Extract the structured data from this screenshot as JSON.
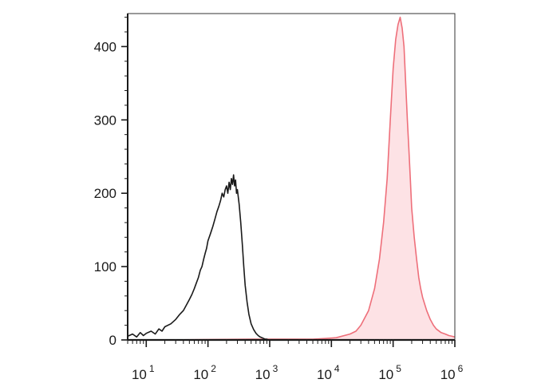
{
  "chart_data": {
    "type": "area",
    "title": "",
    "xlabel": "",
    "ylabel": "",
    "x_scale": "log",
    "xlim": [
      5,
      1000000
    ],
    "ylim": [
      0,
      445
    ],
    "grid": false,
    "legend": "none",
    "y_ticks": [
      {
        "value": 0,
        "label": "0"
      },
      {
        "value": 100,
        "label": "100"
      },
      {
        "value": 200,
        "label": "200"
      },
      {
        "value": 300,
        "label": "300"
      },
      {
        "value": 400,
        "label": "400"
      }
    ],
    "x_ticks": [
      {
        "value": 10,
        "base": "10",
        "exp": "1"
      },
      {
        "value": 100,
        "base": "10",
        "exp": "2"
      },
      {
        "value": 1000,
        "base": "10",
        "exp": "3"
      },
      {
        "value": 10000,
        "base": "10",
        "exp": "4"
      },
      {
        "value": 100000,
        "base": "10",
        "exp": "5"
      },
      {
        "value": 1000000,
        "base": "10",
        "exp": "6"
      }
    ],
    "series": [
      {
        "color": "#1a1a1a",
        "fill": "none",
        "x": [
          5,
          6,
          7,
          8,
          9,
          10,
          12,
          14,
          16,
          18,
          20,
          25,
          30,
          35,
          40,
          45,
          50,
          55,
          60,
          65,
          70,
          75,
          80,
          85,
          90,
          95,
          100,
          110,
          120,
          130,
          140,
          150,
          160,
          170,
          180,
          190,
          200,
          210,
          220,
          230,
          240,
          250,
          260,
          270,
          280,
          290,
          300,
          320,
          340,
          360,
          380,
          400,
          430,
          460,
          500,
          550,
          600,
          650,
          700,
          750,
          800,
          850,
          900,
          950,
          1000
        ],
        "y": [
          5,
          8,
          4,
          10,
          6,
          9,
          12,
          8,
          15,
          12,
          18,
          22,
          28,
          35,
          40,
          48,
          55,
          62,
          70,
          78,
          85,
          95,
          100,
          110,
          118,
          125,
          135,
          145,
          155,
          165,
          175,
          182,
          190,
          200,
          195,
          205,
          210,
          200,
          215,
          205,
          220,
          212,
          225,
          210,
          218,
          200,
          205,
          185,
          160,
          130,
          100,
          75,
          52,
          35,
          22,
          14,
          9,
          6,
          4,
          3,
          2,
          1,
          1,
          0,
          0
        ]
      },
      {
        "color": "#ee6f7a",
        "fill": "#fde2e5",
        "x": [
          20,
          500,
          2000,
          5000,
          8000,
          12000,
          20000,
          25000,
          30000,
          40000,
          50000,
          60000,
          70000,
          80000,
          90000,
          100000,
          110000,
          120000,
          130000,
          140000,
          150000,
          160000,
          170000,
          180000,
          190000,
          200000,
          220000,
          240000,
          260000,
          280000,
          300000,
          350000,
          400000,
          450000,
          500000,
          600000,
          700000,
          800000,
          900000,
          1000000
        ],
        "y": [
          0,
          1,
          1,
          1,
          2,
          3,
          8,
          12,
          20,
          40,
          70,
          110,
          160,
          220,
          300,
          370,
          410,
          430,
          440,
          425,
          400,
          350,
          300,
          260,
          220,
          180,
          140,
          110,
          85,
          70,
          58,
          40,
          28,
          20,
          15,
          10,
          8,
          6,
          5,
          4
        ]
      }
    ]
  }
}
